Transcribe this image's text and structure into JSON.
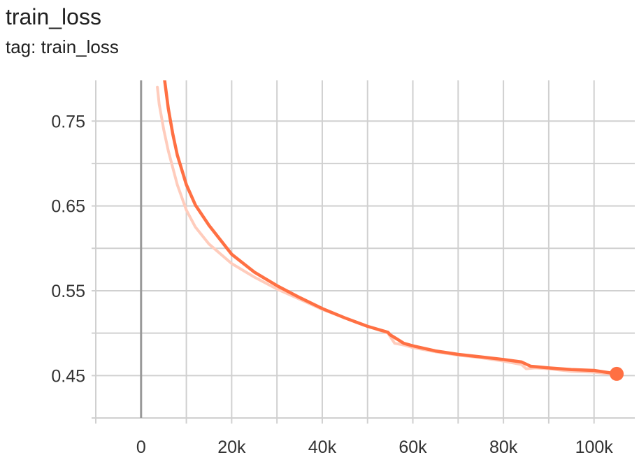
{
  "header": {
    "title": "train_loss",
    "subtitle": "tag: train_loss"
  },
  "colors": {
    "line": "#ff7043",
    "raw_line": "#ffccbc",
    "grid": "#d0d0d0",
    "zero_line": "#999999"
  },
  "chart_data": {
    "type": "line",
    "title": "train_loss",
    "subtitle": "tag: train_loss",
    "xlabel": "",
    "ylabel": "",
    "xlim": [
      -10000,
      109000
    ],
    "ylim": [
      0.4,
      0.798
    ],
    "x_ticks": [
      0,
      20000,
      40000,
      60000,
      80000,
      100000
    ],
    "x_tick_labels": [
      "0",
      "20k",
      "40k",
      "60k",
      "80k",
      "100k"
    ],
    "y_ticks": [
      0.75,
      0.65,
      0.55,
      0.45
    ],
    "y_tick_labels": [
      "0.75",
      "0.65",
      "0.55",
      "0.45"
    ],
    "grid": true,
    "legend": "none",
    "series": [
      {
        "role": "raw",
        "x": [
          3600,
          4000,
          5000,
          6000,
          8000,
          10000,
          12000,
          15000,
          20000,
          25000,
          30000,
          35000,
          40000,
          45000,
          50000,
          54500,
          55000,
          56000,
          58000,
          60000,
          65000,
          70000,
          75000,
          80000,
          84000,
          85000,
          87000,
          90000,
          95000,
          100000,
          105000
        ],
        "y": [
          0.79,
          0.77,
          0.74,
          0.715,
          0.675,
          0.645,
          0.625,
          0.605,
          0.582,
          0.566,
          0.552,
          0.54,
          0.528,
          0.518,
          0.508,
          0.5,
          0.496,
          0.488,
          0.486,
          0.483,
          0.478,
          0.474,
          0.471,
          0.467,
          0.463,
          0.458,
          0.459,
          0.458,
          0.455,
          0.454,
          0.451
        ]
      },
      {
        "role": "smoothed",
        "x": [
          5200,
          6000,
          7000,
          8000,
          10000,
          12000,
          15000,
          20000,
          25000,
          30000,
          35000,
          40000,
          45000,
          50000,
          54500,
          55000,
          56500,
          58000,
          60000,
          65000,
          70000,
          75000,
          80000,
          84000,
          86000,
          90000,
          95000,
          100000,
          105000
        ],
        "y": [
          0.798,
          0.765,
          0.735,
          0.71,
          0.675,
          0.651,
          0.627,
          0.593,
          0.572,
          0.556,
          0.542,
          0.529,
          0.518,
          0.508,
          0.501,
          0.498,
          0.493,
          0.488,
          0.485,
          0.479,
          0.475,
          0.472,
          0.469,
          0.466,
          0.461,
          0.459,
          0.457,
          0.456,
          0.452
        ]
      }
    ],
    "last_point": {
      "x": 105000,
      "y": 0.452
    }
  }
}
